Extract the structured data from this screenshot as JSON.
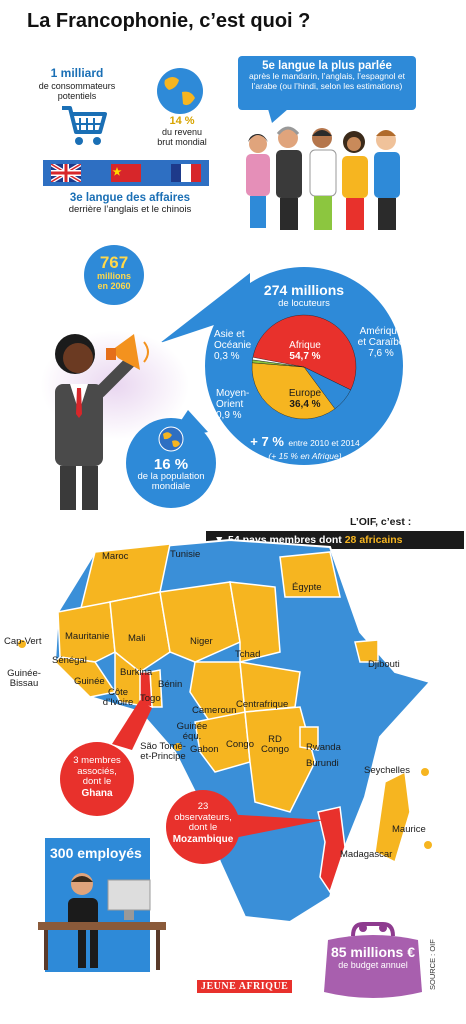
{
  "title": "La Francophonie, c’est quoi ?",
  "consumers": {
    "value": "1 milliard",
    "label": "de consommateurs potentiels"
  },
  "income": {
    "value": "14 %",
    "label": "du revenu brut mondial"
  },
  "business": {
    "value": "3e langue des affaires",
    "label": "derrière l’anglais et le chinois"
  },
  "language_rank": {
    "headline": "5e langue la plus parlée",
    "detail": "après le mandarin, l’anglais, l’espagnol et l’arabe (ou l’hindi, selon les estimations)"
  },
  "projection": {
    "value": "767",
    "unit": "millions",
    "year": "en 2060"
  },
  "population": {
    "value": "16 %",
    "label": "de la population mondiale"
  },
  "speakers": {
    "total": "274 millions",
    "total_label": "de locuteurs",
    "growth": "+ 7 %",
    "growth_label": "entre 2010 et 2014",
    "growth_africa": "(+ 15 % en Afrique)",
    "regions": [
      {
        "name": "Afrique",
        "value": "54,7 %",
        "pct": 54.7,
        "color": "#e8312c"
      },
      {
        "name": "Amérique et Caraïbe",
        "value": "7,6 %",
        "pct": 7.6,
        "color": "#2e8ad8"
      },
      {
        "name": "Europe",
        "value": "36,4 %",
        "pct": 36.4,
        "color": "#f6b520"
      },
      {
        "name": "Moyen-Orient",
        "value": "0,9 %",
        "pct": 0.9,
        "color": "#8cc63f"
      },
      {
        "name": "Asie et Océanie",
        "value": "0,3 %",
        "pct": 0.3,
        "color": "#ffffff"
      }
    ]
  },
  "oif": {
    "intro": "L’OIF, c’est :",
    "members_prefix": "54 pays membres dont",
    "members_highlight": "28 africains"
  },
  "map_colors": {
    "member": "#f6b520",
    "other": "#3a8fd8",
    "associate": "#e8312c"
  },
  "countries": [
    "Maroc",
    "Tunisie",
    "Égypte",
    "Cap-Vert",
    "Mauritanie",
    "Mali",
    "Niger",
    "Tchad",
    "Sénégal",
    "Guinée-Bissau",
    "Guinée",
    "Burkina",
    "Côte d’Ivoire",
    "Togo",
    "Bénin",
    "Djibouti",
    "Cameroun",
    "Centrafrique",
    "Guinée équ.",
    "Gabon",
    "São Tomé-et-Principe",
    "Congo",
    "RD Congo",
    "Rwanda",
    "Burundi",
    "Seychelles",
    "Maurice",
    "Madagascar"
  ],
  "associates": {
    "line1": "3 membres associés,",
    "line2": "dont le",
    "country": "Ghana"
  },
  "observers": {
    "line1": "23 observateurs,",
    "line2": "dont le",
    "country": "Mozambique"
  },
  "employees": "300 employés",
  "budget": {
    "value": "85 millions €",
    "label": "de budget annuel"
  },
  "brand": "JEUNE AFRIQUE",
  "source": "SOURCE : OIF"
}
